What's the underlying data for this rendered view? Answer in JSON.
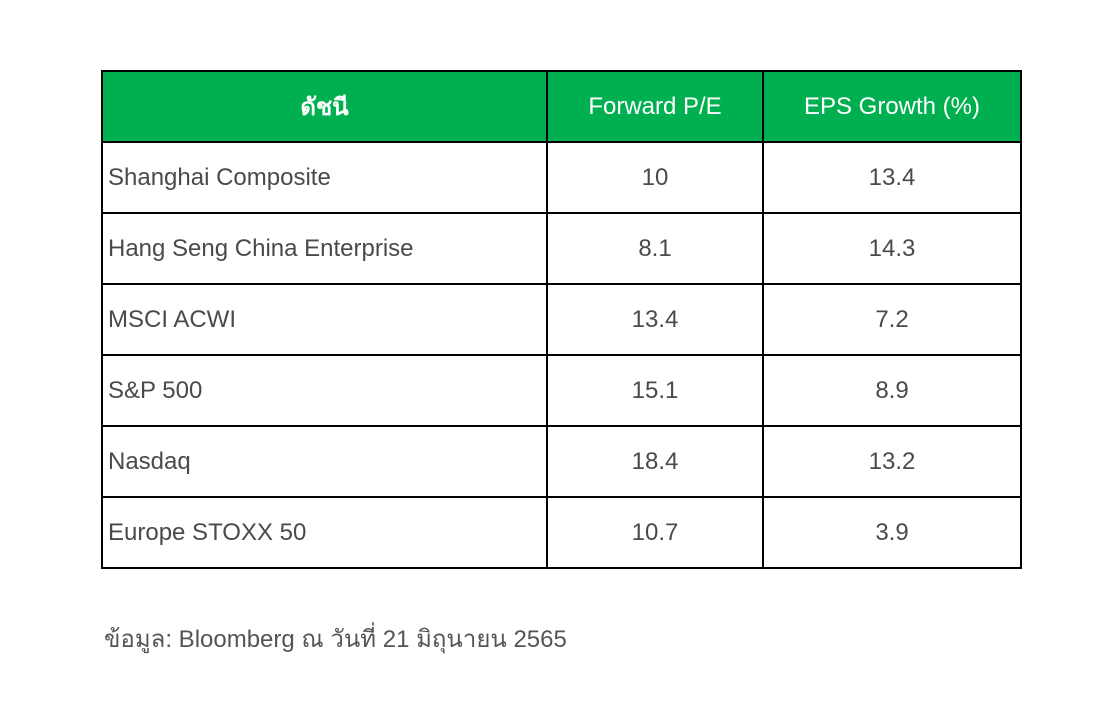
{
  "chart_data": {
    "type": "table",
    "columns": [
      "ดัชนี",
      "Forward P/E",
      "EPS Growth (%)"
    ],
    "rows": [
      {
        "index": "Shanghai Composite",
        "forward_pe": "10",
        "eps_growth": "13.4"
      },
      {
        "index": "Hang Seng China Enterprise",
        "forward_pe": "8.1",
        "eps_growth": "14.3"
      },
      {
        "index": "MSCI ACWI",
        "forward_pe": "13.4",
        "eps_growth": "7.2"
      },
      {
        "index": "S&P 500",
        "forward_pe": "15.1",
        "eps_growth": "8.9"
      },
      {
        "index": "Nasdaq",
        "forward_pe": "18.4",
        "eps_growth": "13.2"
      },
      {
        "index": "Europe STOXX 50",
        "forward_pe": "10.7",
        "eps_growth": "3.9"
      }
    ],
    "header_color": "#00b050"
  },
  "source": "ข้อมูล: Bloomberg ณ วันที่ 21 มิถุนายน 2565"
}
